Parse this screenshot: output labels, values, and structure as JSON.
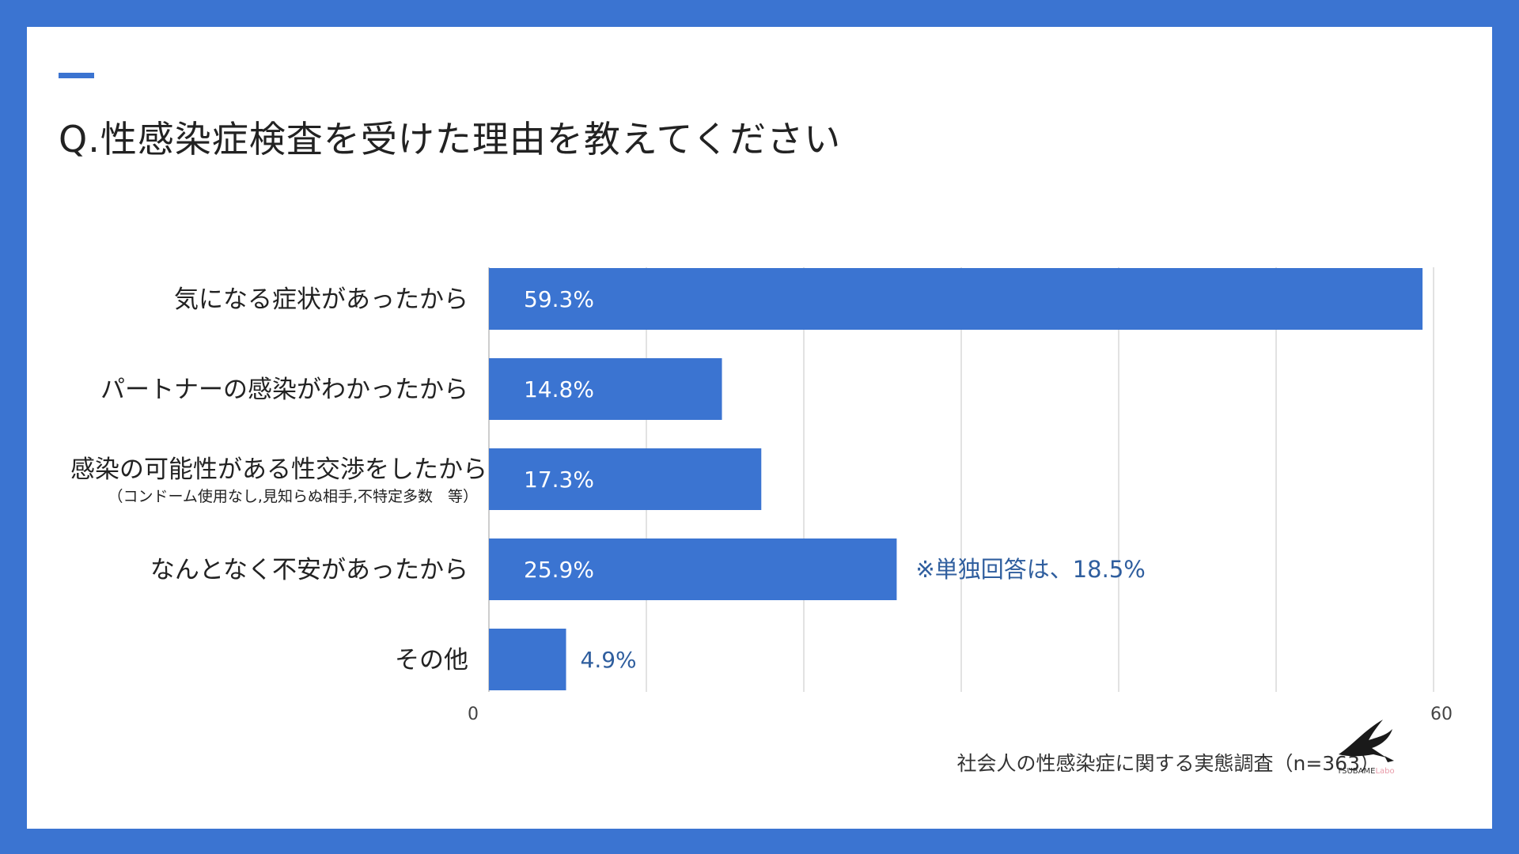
{
  "title": "Q.性感染症検査を受けた理由を教えてください",
  "source": "社会人の性感染症に関する実態調査（n=363）",
  "logo": {
    "brand": "TSUBAME",
    "suffix": "Labo",
    "icon": "swallow-icon"
  },
  "colors": {
    "bar": "#3b74d1",
    "background": "#3b74d1",
    "note": "#2f5e9e",
    "grid": "#d9d9d9"
  },
  "chart_data": {
    "type": "bar",
    "orientation": "horizontal",
    "categories": [
      "気になる症状があったから",
      "パートナーの感染がわかったから",
      "感染の可能性がある性交渉をしたから",
      "なんとなく不安があったから",
      "その他"
    ],
    "category_sublabels": [
      "",
      "",
      "（コンドーム使用なし,見知らぬ相手,不特定多数　等）",
      "",
      ""
    ],
    "values": [
      59.3,
      14.8,
      17.3,
      25.9,
      4.9
    ],
    "value_labels": [
      "59.3%",
      "14.8%",
      "17.3%",
      "25.9%",
      "4.9%"
    ],
    "annotations": [
      "",
      "",
      "",
      "※単独回答は、18.5%",
      ""
    ],
    "xlim": [
      0,
      60
    ],
    "x_ticks": [
      0,
      10,
      20,
      30,
      40,
      50,
      60
    ],
    "x_tick_labels": [
      "0",
      "",
      "",
      "",
      "",
      "",
      "60"
    ],
    "grid": true,
    "legend": "none"
  }
}
